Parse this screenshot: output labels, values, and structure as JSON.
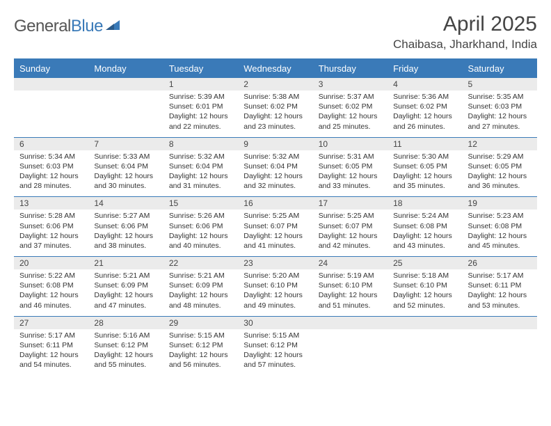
{
  "logo": {
    "word1": "General",
    "word2": "Blue"
  },
  "title": "April 2025",
  "location": "Chaibasa, Jharkhand, India",
  "colors": {
    "header_bg": "#3a7ab8",
    "header_text": "#ffffff",
    "daynum_bg": "#ebebeb",
    "border": "#3a7ab8",
    "body_text": "#333333"
  },
  "weekdays": [
    "Sunday",
    "Monday",
    "Tuesday",
    "Wednesday",
    "Thursday",
    "Friday",
    "Saturday"
  ],
  "weeks": [
    [
      null,
      null,
      {
        "n": "1",
        "sr": "5:39 AM",
        "ss": "6:01 PM",
        "dl": "12 hours and 22 minutes."
      },
      {
        "n": "2",
        "sr": "5:38 AM",
        "ss": "6:02 PM",
        "dl": "12 hours and 23 minutes."
      },
      {
        "n": "3",
        "sr": "5:37 AM",
        "ss": "6:02 PM",
        "dl": "12 hours and 25 minutes."
      },
      {
        "n": "4",
        "sr": "5:36 AM",
        "ss": "6:02 PM",
        "dl": "12 hours and 26 minutes."
      },
      {
        "n": "5",
        "sr": "5:35 AM",
        "ss": "6:03 PM",
        "dl": "12 hours and 27 minutes."
      }
    ],
    [
      {
        "n": "6",
        "sr": "5:34 AM",
        "ss": "6:03 PM",
        "dl": "12 hours and 28 minutes."
      },
      {
        "n": "7",
        "sr": "5:33 AM",
        "ss": "6:04 PM",
        "dl": "12 hours and 30 minutes."
      },
      {
        "n": "8",
        "sr": "5:32 AM",
        "ss": "6:04 PM",
        "dl": "12 hours and 31 minutes."
      },
      {
        "n": "9",
        "sr": "5:32 AM",
        "ss": "6:04 PM",
        "dl": "12 hours and 32 minutes."
      },
      {
        "n": "10",
        "sr": "5:31 AM",
        "ss": "6:05 PM",
        "dl": "12 hours and 33 minutes."
      },
      {
        "n": "11",
        "sr": "5:30 AM",
        "ss": "6:05 PM",
        "dl": "12 hours and 35 minutes."
      },
      {
        "n": "12",
        "sr": "5:29 AM",
        "ss": "6:05 PM",
        "dl": "12 hours and 36 minutes."
      }
    ],
    [
      {
        "n": "13",
        "sr": "5:28 AM",
        "ss": "6:06 PM",
        "dl": "12 hours and 37 minutes."
      },
      {
        "n": "14",
        "sr": "5:27 AM",
        "ss": "6:06 PM",
        "dl": "12 hours and 38 minutes."
      },
      {
        "n": "15",
        "sr": "5:26 AM",
        "ss": "6:06 PM",
        "dl": "12 hours and 40 minutes."
      },
      {
        "n": "16",
        "sr": "5:25 AM",
        "ss": "6:07 PM",
        "dl": "12 hours and 41 minutes."
      },
      {
        "n": "17",
        "sr": "5:25 AM",
        "ss": "6:07 PM",
        "dl": "12 hours and 42 minutes."
      },
      {
        "n": "18",
        "sr": "5:24 AM",
        "ss": "6:08 PM",
        "dl": "12 hours and 43 minutes."
      },
      {
        "n": "19",
        "sr": "5:23 AM",
        "ss": "6:08 PM",
        "dl": "12 hours and 45 minutes."
      }
    ],
    [
      {
        "n": "20",
        "sr": "5:22 AM",
        "ss": "6:08 PM",
        "dl": "12 hours and 46 minutes."
      },
      {
        "n": "21",
        "sr": "5:21 AM",
        "ss": "6:09 PM",
        "dl": "12 hours and 47 minutes."
      },
      {
        "n": "22",
        "sr": "5:21 AM",
        "ss": "6:09 PM",
        "dl": "12 hours and 48 minutes."
      },
      {
        "n": "23",
        "sr": "5:20 AM",
        "ss": "6:10 PM",
        "dl": "12 hours and 49 minutes."
      },
      {
        "n": "24",
        "sr": "5:19 AM",
        "ss": "6:10 PM",
        "dl": "12 hours and 51 minutes."
      },
      {
        "n": "25",
        "sr": "5:18 AM",
        "ss": "6:10 PM",
        "dl": "12 hours and 52 minutes."
      },
      {
        "n": "26",
        "sr": "5:17 AM",
        "ss": "6:11 PM",
        "dl": "12 hours and 53 minutes."
      }
    ],
    [
      {
        "n": "27",
        "sr": "5:17 AM",
        "ss": "6:11 PM",
        "dl": "12 hours and 54 minutes."
      },
      {
        "n": "28",
        "sr": "5:16 AM",
        "ss": "6:12 PM",
        "dl": "12 hours and 55 minutes."
      },
      {
        "n": "29",
        "sr": "5:15 AM",
        "ss": "6:12 PM",
        "dl": "12 hours and 56 minutes."
      },
      {
        "n": "30",
        "sr": "5:15 AM",
        "ss": "6:12 PM",
        "dl": "12 hours and 57 minutes."
      },
      null,
      null,
      null
    ]
  ],
  "labels": {
    "sunrise": "Sunrise:",
    "sunset": "Sunset:",
    "daylight": "Daylight:"
  }
}
